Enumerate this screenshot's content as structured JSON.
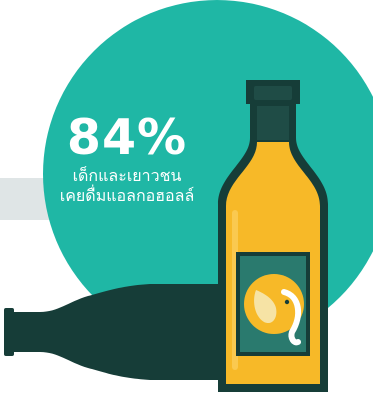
{
  "stat": {
    "value": "84%",
    "caption_line1": "เด็กและเยาวชน",
    "caption_line2": "เคยดื่มแอลกอฮอลล์"
  },
  "colors": {
    "teal": "#1fb7a5",
    "band_gray": "#dfe5e6",
    "bottle_outline": "#163d38",
    "beer_yellow": "#f7b928",
    "label_teal": "#2a7a6e",
    "elephant_yellow": "#f7b928",
    "elephant_light": "#f6e3a5"
  },
  "icons": {
    "bottle_upright": "beer-bottle-icon",
    "bottle_lying": "lying-bottle-icon",
    "label_mark": "elephant-icon"
  }
}
